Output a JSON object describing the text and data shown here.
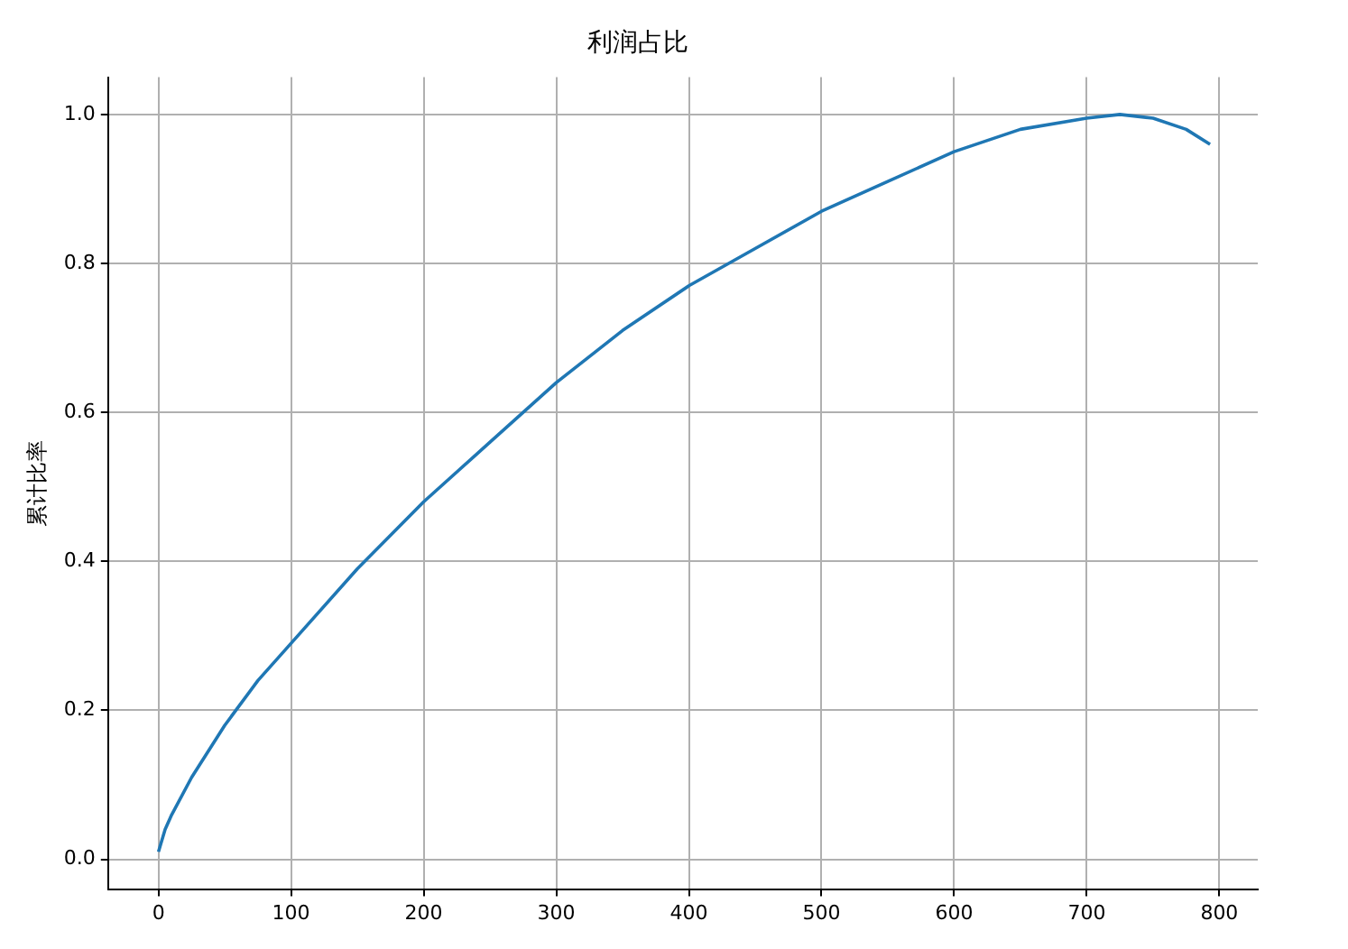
{
  "chart_data": {
    "type": "line",
    "title": "利润占比",
    "ylabel": "累计比率",
    "x": [
      0,
      5,
      10,
      25,
      50,
      75,
      100,
      150,
      200,
      250,
      300,
      350,
      400,
      450,
      500,
      550,
      600,
      650,
      700,
      725,
      750,
      775,
      793
    ],
    "series": [
      {
        "color": "#1f77b4",
        "values": [
          0.01,
          0.04,
          0.06,
          0.11,
          0.18,
          0.24,
          0.29,
          0.39,
          0.48,
          0.56,
          0.64,
          0.71,
          0.77,
          0.82,
          0.87,
          0.91,
          0.95,
          0.98,
          0.995,
          1.0,
          0.995,
          0.98,
          0.96
        ]
      }
    ],
    "xlim": [
      -38,
      829
    ],
    "ylim": [
      -0.04,
      1.05
    ],
    "xticks": [
      0,
      100,
      200,
      300,
      400,
      500,
      600,
      700,
      800
    ],
    "yticks": [
      {
        "value": 0,
        "label": "0.0"
      },
      {
        "value": 0.2,
        "label": "0.2"
      },
      {
        "value": 0.4,
        "label": "0.4"
      },
      {
        "value": 0.6,
        "label": "0.6"
      },
      {
        "value": 0.8,
        "label": "0.8"
      },
      {
        "value": 1,
        "label": "1.0"
      }
    ],
    "grid": true,
    "line_style": "solid",
    "marker": "none",
    "legend": false
  }
}
